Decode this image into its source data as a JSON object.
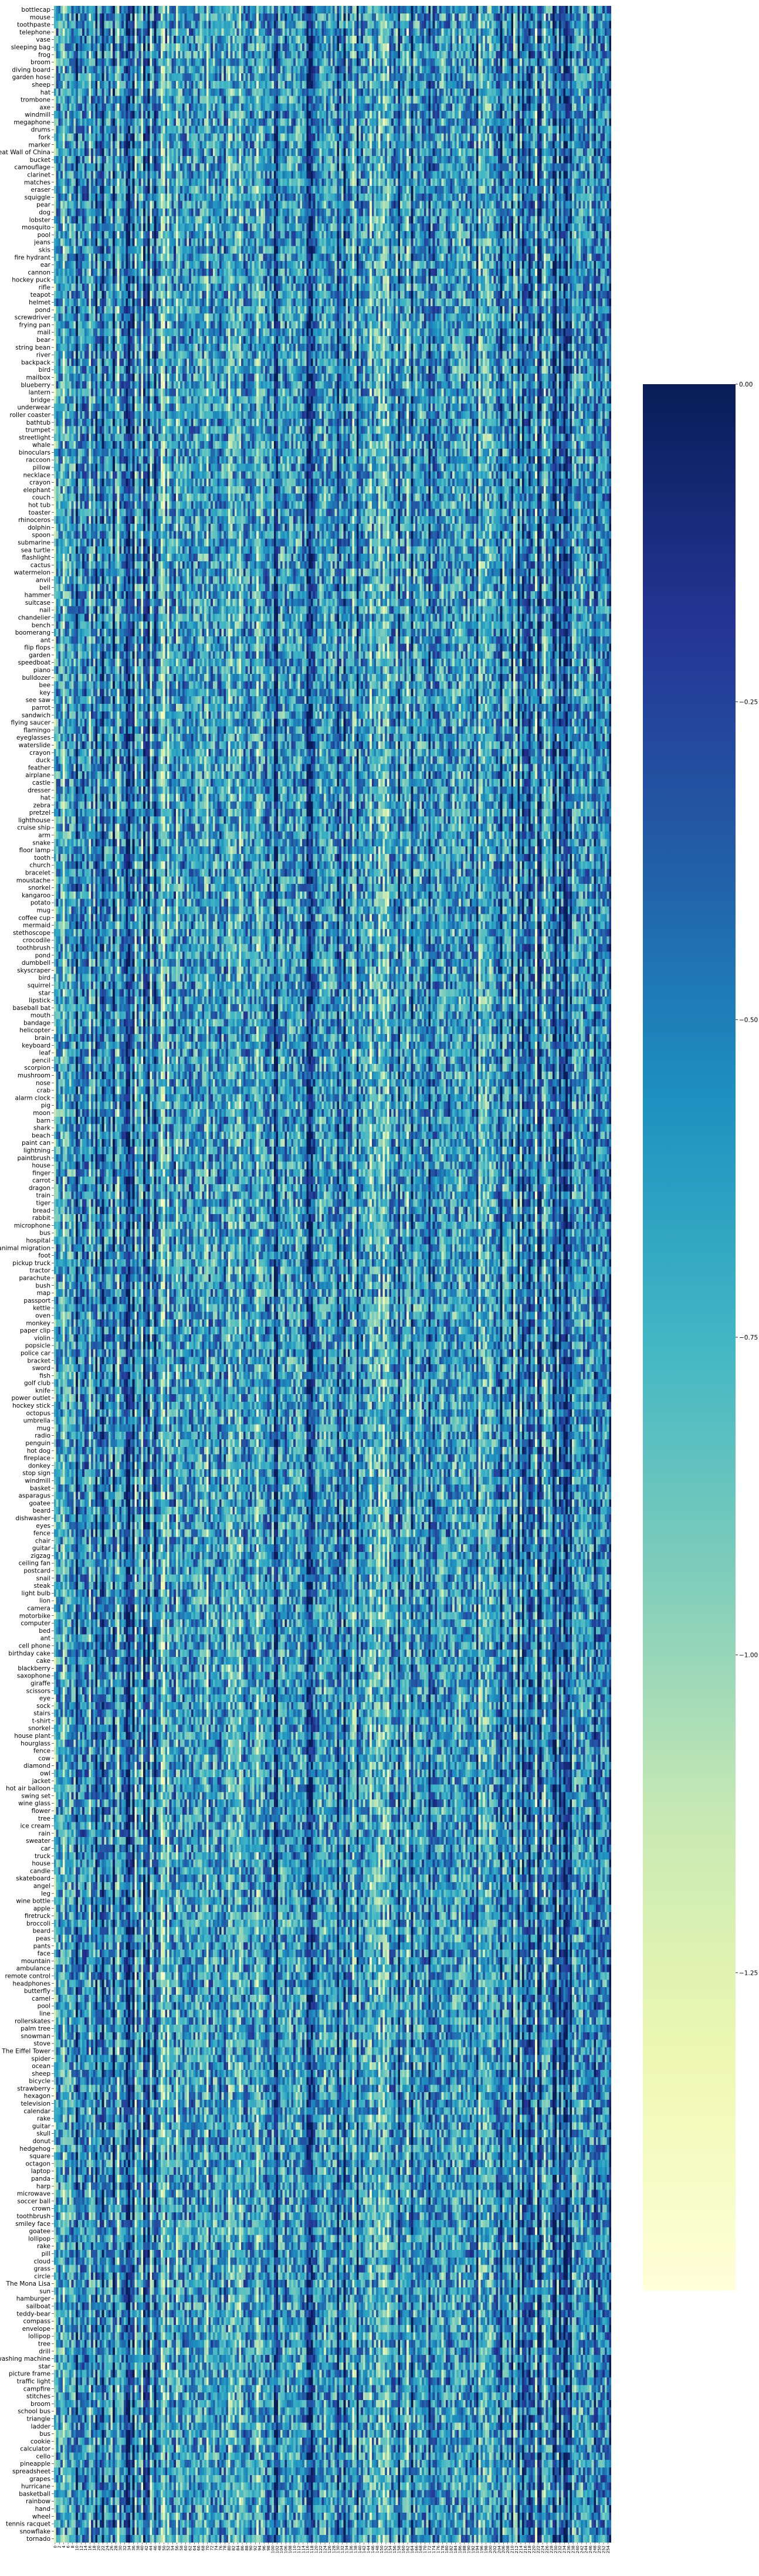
{
  "chart_data": {
    "type": "heatmap",
    "title": "",
    "xlabel": "",
    "ylabel": "",
    "row_labels": [
      "bottlecap",
      "mouse",
      "toothpaste",
      "telephone",
      "vase",
      "sleeping bag",
      "frog",
      "broom",
      "diving board",
      "garden hose",
      "sheep",
      "hat",
      "trombone",
      "axe",
      "windmill",
      "megaphone",
      "drums",
      "fork",
      "marker",
      "The Great Wall of China",
      "bucket",
      "camouflage",
      "clarinet",
      "matches",
      "eraser",
      "squiggle",
      "pear",
      "dog",
      "lobster",
      "mosquito",
      "pool",
      "jeans",
      "skis",
      "fire hydrant",
      "ear",
      "cannon",
      "hockey puck",
      "rifle",
      "teapot",
      "helmet",
      "pond",
      "screwdriver",
      "frying pan",
      "mail",
      "bear",
      "string bean",
      "river",
      "backpack",
      "bird",
      "mailbox",
      "blueberry",
      "lantern",
      "bridge",
      "underwear",
      "roller coaster",
      "bathtub",
      "trumpet",
      "streetlight",
      "whale",
      "binoculars",
      "raccoon",
      "pillow",
      "necklace",
      "crayon",
      "elephant",
      "couch",
      "hot tub",
      "toaster",
      "rhinoceros",
      "dolphin",
      "spoon",
      "submarine",
      "sea turtle",
      "flashlight",
      "cactus",
      "watermelon",
      "anvil",
      "bell",
      "hammer",
      "suitcase",
      "nail",
      "chandelier",
      "bench",
      "boomerang",
      "ant",
      "flip flops",
      "garden",
      "speedboat",
      "piano",
      "bulldozer",
      "bee",
      "key",
      "see saw",
      "parrot",
      "sandwich",
      "flying saucer",
      "flamingo",
      "eyeglasses",
      "waterslide",
      "crayon",
      "duck",
      "feather",
      "airplane",
      "castle",
      "dresser",
      "hat",
      "zebra",
      "pretzel",
      "lighthouse",
      "cruise ship",
      "arm",
      "snake",
      "floor lamp",
      "tooth",
      "church",
      "bracelet",
      "moustache",
      "snorkel",
      "kangaroo",
      "potato",
      "mug",
      "coffee cup",
      "mermaid",
      "stethoscope",
      "crocodile",
      "toothbrush",
      "pond",
      "dumbbell",
      "skyscraper",
      "bird",
      "squirrel",
      "star",
      "lipstick",
      "baseball bat",
      "mouth",
      "bandage",
      "helicopter",
      "brain",
      "keyboard",
      "leaf",
      "pencil",
      "scorpion",
      "mushroom",
      "nose",
      "crab",
      "alarm clock",
      "pig",
      "moon",
      "barn",
      "shark",
      "beach",
      "paint can",
      "lightning",
      "paintbrush",
      "house",
      "finger",
      "carrot",
      "dragon",
      "train",
      "tiger",
      "bread",
      "rabbit",
      "microphone",
      "bus",
      "hospital",
      "animal migration",
      "foot",
      "pickup truck",
      "tractor",
      "parachute",
      "bush",
      "map",
      "passport",
      "kettle",
      "oven",
      "monkey",
      "paper clip",
      "violin",
      "popsicle",
      "police car",
      "bracket",
      "sword",
      "fish",
      "golf club",
      "knife",
      "power outlet",
      "hockey stick",
      "octopus",
      "umbrella",
      "mug",
      "radio",
      "penguin",
      "hot dog",
      "fireplace",
      "donkey",
      "stop sign",
      "windmill",
      "basket",
      "asparagus",
      "goatee",
      "beard",
      "dishwasher",
      "eyes",
      "fence",
      "chair",
      "guitar",
      "zigzag",
      "ceiling fan",
      "postcard",
      "snail",
      "steak",
      "light bulb",
      "lion",
      "camera",
      "motorbike",
      "computer",
      "bed",
      "ant",
      "cell phone",
      "birthday cake",
      "cake",
      "blackberry",
      "saxophone",
      "giraffe",
      "scissors",
      "eye",
      "sock",
      "stairs",
      "t-shirt",
      "snorkel",
      "house plant",
      "hourglass",
      "fence",
      "cow",
      "diamond",
      "owl",
      "jacket",
      "hot air balloon",
      "swing set",
      "wine glass",
      "flower",
      "tree",
      "ice cream",
      "rain",
      "sweater",
      "car",
      "truck",
      "house",
      "candle",
      "skateboard",
      "angel",
      "leg",
      "wine bottle",
      "apple",
      "firetruck",
      "broccoli",
      "beard",
      "peas",
      "pants",
      "face",
      "mountain",
      "ambulance",
      "remote control",
      "headphones",
      "butterfly",
      "camel",
      "pool",
      "line",
      "rollerskates",
      "palm tree",
      "snowman",
      "stove",
      "The Eiffel Tower",
      "spider",
      "ocean",
      "sheep",
      "bicycle",
      "strawberry",
      "hexagon",
      "television",
      "calendar",
      "rake",
      "guitar",
      "skull",
      "donut",
      "hedgehog",
      "square",
      "octagon",
      "laptop",
      "panda",
      "harp",
      "microwave",
      "soccer ball",
      "crown",
      "toothbrush",
      "smiley face",
      "goatee",
      "lollipop",
      "rake",
      "pill",
      "cloud",
      "grass",
      "circle",
      "The Mona Lisa",
      "sun",
      "hamburger",
      "sailboat",
      "teddy-bear",
      "compass",
      "envelope",
      "lollipop",
      "tree",
      "drill",
      "washing machine",
      "star",
      "picture frame",
      "traffic light",
      "campfire",
      "stitches",
      "broom",
      "school bus",
      "triangle",
      "ladder",
      "bus",
      "cookie",
      "calculator",
      "cello",
      "pineapple",
      "spreadsheet",
      "grapes",
      "hurricane",
      "basketball",
      "rainbow",
      "hand",
      "wheel",
      "tennis racquet",
      "snowflake",
      "tornado"
    ],
    "x_tick_labels": [
      "0",
      "2",
      "4",
      "6",
      "8",
      "10",
      "12",
      "14",
      "16",
      "18",
      "20",
      "22",
      "24",
      "26",
      "28",
      "30",
      "32",
      "34",
      "36",
      "38",
      "40",
      "42",
      "44",
      "46",
      "48",
      "50",
      "52",
      "54",
      "56",
      "58",
      "60",
      "62",
      "64",
      "66",
      "68",
      "70",
      "72",
      "74",
      "76",
      "78",
      "80",
      "82",
      "84",
      "86",
      "88",
      "90",
      "92",
      "94",
      "96",
      "98",
      "100",
      "102",
      "104",
      "106",
      "108",
      "110",
      "112",
      "114",
      "116",
      "118",
      "120",
      "122",
      "124",
      "126",
      "128",
      "130",
      "132",
      "134",
      "136",
      "138",
      "140",
      "142",
      "144",
      "146",
      "148",
      "150",
      "152",
      "154",
      "156",
      "158",
      "160",
      "162",
      "164",
      "166",
      "168",
      "170",
      "172",
      "174",
      "176",
      "178",
      "180",
      "182",
      "184",
      "186",
      "188",
      "190",
      "192",
      "194",
      "196",
      "198",
      "200",
      "202",
      "204",
      "206",
      "208",
      "210",
      "212",
      "214",
      "216",
      "218",
      "220",
      "222",
      "224",
      "226",
      "228",
      "230",
      "232",
      "234",
      "236",
      "238",
      "240",
      "242",
      "244",
      "246",
      "248",
      "250",
      "252",
      "254"
    ],
    "n_columns": 256,
    "colormap": "YlGnBu_r",
    "colors": {
      "low": "#ffffd9",
      "mid_low": "#7fcdbb",
      "mid": "#1d91c0",
      "mid_high": "#225ea8",
      "high": "#081d58"
    },
    "value_range": [
      -1.5,
      0.0
    ],
    "colorbar": {
      "min": -1.5,
      "max": 0.0,
      "ticks": [
        0.0,
        -0.25,
        -0.5,
        -0.75,
        -1.0,
        -1.25
      ],
      "tick_labels": [
        "0.00",
        "−0.25",
        "−0.50",
        "−0.75",
        "−1.00",
        "−1.25"
      ]
    },
    "legend": "colorbar-right",
    "grid": false
  }
}
